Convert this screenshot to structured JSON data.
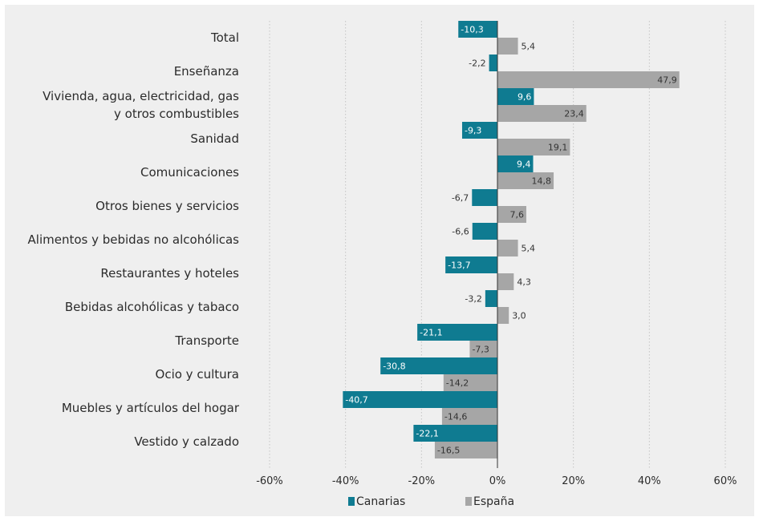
{
  "chart_data": {
    "type": "bar",
    "orientation": "horizontal",
    "categories": [
      "Total",
      "Enseñanza",
      "Vivienda, agua, electricidad, gas y otros combustibles",
      "Sanidad",
      "Comunicaciones",
      "Otros bienes y servicios",
      "Alimentos y bebidas no alcohólicas",
      "Restaurantes y hoteles",
      "Bebidas alcohólicas y tabaco",
      "Transporte",
      "Ocio y cultura",
      "Muebles y artículos del hogar",
      "Vestido y calzado"
    ],
    "category_lines": [
      [
        "Total"
      ],
      [
        "Enseñanza"
      ],
      [
        "Vivienda, agua, electricidad, gas",
        "y otros combustibles"
      ],
      [
        "Sanidad"
      ],
      [
        "Comunicaciones"
      ],
      [
        "Otros bienes y servicios"
      ],
      [
        "Alimentos y bebidas no alcohólicas"
      ],
      [
        "Restaurantes y hoteles"
      ],
      [
        "Bebidas alcohólicas y tabaco"
      ],
      [
        "Transporte"
      ],
      [
        "Ocio y cultura"
      ],
      [
        "Muebles y artículos del hogar"
      ],
      [
        "Vestido y calzado"
      ]
    ],
    "series": [
      {
        "name": "Canarias",
        "color": "#0f7b91",
        "values": [
          -10.3,
          -2.2,
          9.6,
          -9.3,
          9.4,
          -6.7,
          -6.6,
          -13.7,
          -3.2,
          -21.1,
          -30.8,
          -40.7,
          -22.1
        ],
        "labels": [
          "-10,3",
          "-2,2",
          "9,6",
          "-9,3",
          "9,4",
          "-6,7",
          "-6,6",
          "-13,7",
          "-3,2",
          "-21,1",
          "-30,8",
          "-40,7",
          "-22,1"
        ]
      },
      {
        "name": "España",
        "color": "#a6a6a6",
        "values": [
          5.4,
          47.9,
          23.4,
          19.1,
          14.8,
          7.6,
          5.4,
          4.3,
          3.0,
          -7.3,
          -14.2,
          -14.6,
          -16.5
        ],
        "labels": [
          "5,4",
          "47,9",
          "23,4",
          "19,1",
          "14,8",
          "7,6",
          "5,4",
          "4,3",
          "3,0",
          "-7,3",
          "-14,2",
          "-14,6",
          "-16,5"
        ]
      }
    ],
    "xlim": [
      -60,
      60
    ],
    "xticks": [
      -60,
      -40,
      -20,
      0,
      20,
      40,
      60
    ],
    "xtick_labels": [
      "-60%",
      "-40%",
      "-20%",
      "0%",
      "20%",
      "40%",
      "60%"
    ],
    "grid": "vertical dotted",
    "legend": "bottom-center",
    "background": "#efefef"
  }
}
